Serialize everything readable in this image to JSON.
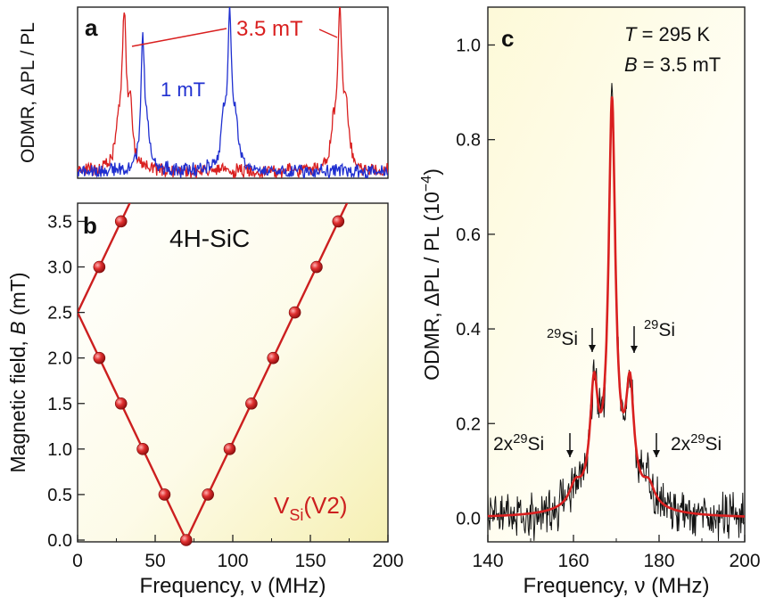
{
  "chart_data": [
    {
      "panel": "a",
      "type": "line",
      "ylabel": "ODMR, ΔPL / PL",
      "annotations": [
        "3.5 mT",
        "1 mT"
      ],
      "colors": {
        "3.5 mT": "#d91f1f",
        "1 mT": "#1f2fd0"
      },
      "xlim": [
        0,
        200
      ],
      "ylim": [
        0,
        1.1
      ],
      "series": [
        {
          "name": "3.5 mT",
          "peaks": [
            {
              "x": 30,
              "height": 1.0,
              "width": 1.6
            },
            {
              "x": 34,
              "height": 0.35,
              "width": 2.0
            },
            {
              "x": 26,
              "height": 0.25,
              "width": 1.8
            },
            {
              "x": 169,
              "height": 1.0,
              "width": 1.6
            },
            {
              "x": 173,
              "height": 0.35,
              "width": 2.0
            },
            {
              "x": 165,
              "height": 0.25,
              "width": 1.8
            }
          ]
        },
        {
          "name": "1 mT",
          "peaks": [
            {
              "x": 42,
              "height": 0.82,
              "width": 1.5
            },
            {
              "x": 45,
              "height": 0.2,
              "width": 2.0
            },
            {
              "x": 98,
              "height": 1.0,
              "width": 1.5
            },
            {
              "x": 94,
              "height": 0.3,
              "width": 2.0
            },
            {
              "x": 102,
              "height": 0.25,
              "width": 2.0
            }
          ]
        }
      ]
    },
    {
      "panel": "b",
      "type": "scatter",
      "xlabel": "Frequency, ν (MHz)",
      "ylabel": "Magnetic field, B (mT)",
      "label": "4H-SiC",
      "series_label": {
        "main": "V",
        "sub": "Si",
        "tail": "(V2)"
      },
      "color": "#cc1f1f",
      "xlim": [
        0,
        200
      ],
      "ylim": [
        0,
        3.7
      ],
      "xticks": [
        "0",
        "50",
        "100",
        "150",
        "200"
      ],
      "yticks": [
        "0.0",
        "0.5",
        "1.0",
        "1.5",
        "2.0",
        "2.5",
        "3.0",
        "3.5"
      ],
      "points": [
        {
          "x": 70,
          "y": 0.0
        },
        {
          "x": 56,
          "y": 0.5
        },
        {
          "x": 84,
          "y": 0.5
        },
        {
          "x": 42,
          "y": 1.0
        },
        {
          "x": 98,
          "y": 1.0
        },
        {
          "x": 28,
          "y": 1.5
        },
        {
          "x": 112,
          "y": 1.5
        },
        {
          "x": 14,
          "y": 2.0
        },
        {
          "x": 126,
          "y": 2.0
        },
        {
          "x": 140,
          "y": 2.5
        },
        {
          "x": 14,
          "y": 3.0
        },
        {
          "x": 154,
          "y": 3.0
        },
        {
          "x": 28,
          "y": 3.5
        },
        {
          "x": 168,
          "y": 3.5
        }
      ],
      "fit_lines": [
        {
          "from": [
            70,
            0.0
          ],
          "to": [
            0,
            2.5
          ]
        },
        {
          "from": [
            70,
            0.0
          ],
          "to": [
            175,
            3.75
          ]
        },
        {
          "from": [
            0,
            2.5
          ],
          "to": [
            35,
            3.75
          ]
        }
      ]
    },
    {
      "panel": "c",
      "type": "line",
      "xlabel": "Frequency, ν (MHz)",
      "ylabel": "ODMR, ΔPL / PL (10⁻⁴)",
      "conditions": [
        "T = 295 K",
        "B = 3.5 mT"
      ],
      "xlim": [
        140,
        200
      ],
      "ylim": [
        -0.05,
        1.08
      ],
      "xticks": [
        "140",
        "160",
        "180",
        "200"
      ],
      "yticks": [
        "0.0",
        "0.2",
        "0.4",
        "0.6",
        "0.8",
        "1.0"
      ],
      "annotations": [
        {
          "text": "29Si",
          "x": 165,
          "y": 0.32
        },
        {
          "text": "29Si",
          "x": 173.5,
          "y": 0.32
        },
        {
          "text": "2x29Si",
          "x": 159,
          "y": 0.19
        },
        {
          "text": "2x29Si",
          "x": 178.5,
          "y": 0.19
        }
      ],
      "series": [
        {
          "name": "data",
          "color": "#111111"
        },
        {
          "name": "fit",
          "color": "#d91f1f",
          "components": [
            {
              "center": 169,
              "amp": 0.8,
              "hwhm": 0.95
            },
            {
              "center": 164.8,
              "amp": 0.22,
              "hwhm": 1.1
            },
            {
              "center": 173.2,
              "amp": 0.22,
              "hwhm": 1.1
            },
            {
              "center": 160.4,
              "amp": 0.04,
              "hwhm": 1.6
            },
            {
              "center": 177.6,
              "amp": 0.04,
              "hwhm": 1.6
            },
            {
              "center": 169,
              "amp": 0.06,
              "hwhm": 6.0
            }
          ]
        }
      ]
    }
  ]
}
